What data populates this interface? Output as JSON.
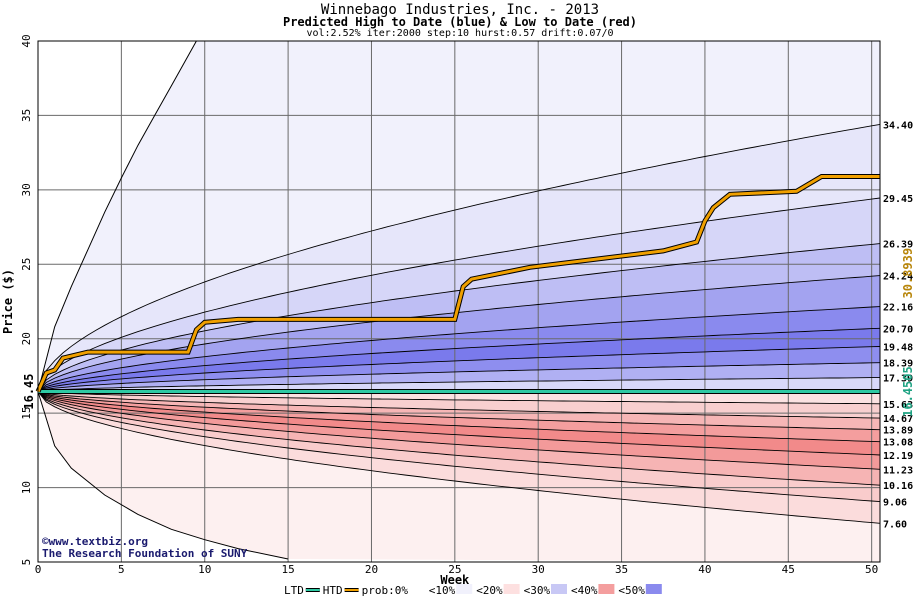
{
  "header": {
    "title": "Winnebago Industries, Inc. - 2013",
    "subtitle": "Predicted High to Date (blue) &  Low to Date (red)",
    "params": "vol:2.52% iter:2000 step:10 hurst:0.57 drift:0.07/0"
  },
  "credits": {
    "site": "©www.textbiz.org",
    "org": "The Research Foundation of SUNY"
  },
  "colors": {
    "background": "#ffffff",
    "grid": "#6a6a6a",
    "current_line": "#2ec9a3",
    "step_line": "#f0a000",
    "band_outline": "#000000",
    "start_label": "#000000",
    "current_label": "#1fa383",
    "step_label": "#b8860b"
  },
  "chart_data": {
    "type": "area",
    "title": "Winnebago Industries, Inc. - 2013",
    "xlabel": "Week",
    "ylabel": "Price ($)",
    "xlim": [
      0,
      50.5
    ],
    "ylim": [
      5,
      40
    ],
    "x_ticks": [
      0,
      5,
      10,
      15,
      20,
      25,
      30,
      35,
      40,
      45,
      50
    ],
    "y_ticks": [
      5,
      10,
      15,
      20,
      25,
      30,
      35,
      40
    ],
    "grid": true,
    "start_price": 16.45,
    "start_label": "16.45",
    "current_value": 16.4505,
    "current_label": "16.4505",
    "predicted_high_label": "30.8939",
    "high_outer_curve": {
      "x": [
        0,
        1,
        2,
        3,
        4,
        5,
        6,
        7,
        8,
        9,
        9.5
      ],
      "y": [
        16.45,
        20.8,
        23.5,
        26.0,
        28.5,
        30.8,
        33.0,
        35.0,
        37.0,
        39.0,
        40.0
      ]
    },
    "low_outer_curve": {
      "x": [
        0,
        1,
        2,
        4,
        6,
        8,
        10,
        12,
        15
      ],
      "y": [
        16.45,
        12.8,
        11.3,
        9.5,
        8.2,
        7.2,
        6.5,
        5.9,
        5.2
      ]
    },
    "quantile_curves": [
      {
        "end": 34.4,
        "label": "34.40"
      },
      {
        "end": 29.45,
        "label": "29.45"
      },
      {
        "end": 26.39,
        "label": "26.39"
      },
      {
        "end": 24.24,
        "label": "24.24"
      },
      {
        "end": 22.16,
        "label": "22.16"
      },
      {
        "end": 20.7,
        "label": "20.70"
      },
      {
        "end": 19.48,
        "label": "19.48"
      },
      {
        "end": 18.39,
        "label": "18.39"
      },
      {
        "end": 17.39,
        "label": "17.39"
      },
      {
        "end": 15.63,
        "label": "15.63"
      },
      {
        "end": 14.67,
        "label": "14.67"
      },
      {
        "end": 13.89,
        "label": "13.89"
      },
      {
        "end": 13.08,
        "label": "13.08"
      },
      {
        "end": 12.19,
        "label": "12.19"
      },
      {
        "end": 11.23,
        "label": "11.23"
      },
      {
        "end": 10.16,
        "label": "10.16"
      },
      {
        "end": 9.06,
        "label": "9.06"
      },
      {
        "end": 7.6,
        "label": "7.60"
      }
    ],
    "band_fills": [
      {
        "lo": 29.45,
        "hi": 34.4,
        "color": "#e6e6fa"
      },
      {
        "lo": 26.39,
        "hi": 29.45,
        "color": "#d6d6f8"
      },
      {
        "lo": 24.24,
        "hi": 26.39,
        "color": "#bebef4"
      },
      {
        "lo": 22.16,
        "hi": 24.24,
        "color": "#a3a3f0"
      },
      {
        "lo": 20.7,
        "hi": 22.16,
        "color": "#8a8aee"
      },
      {
        "lo": 19.48,
        "hi": 20.7,
        "color": "#7a7aec"
      },
      {
        "lo": 18.39,
        "hi": 19.48,
        "color": "#8e8eef"
      },
      {
        "lo": 17.39,
        "hi": 18.39,
        "color": "#b0b0f3"
      },
      {
        "lo": 16.45,
        "hi": 17.39,
        "color": "#d8d8f9"
      },
      {
        "lo": 15.63,
        "hi": 16.45,
        "color": "#fbe2e2"
      },
      {
        "lo": 14.67,
        "hi": 15.63,
        "color": "#f8cfcf"
      },
      {
        "lo": 13.89,
        "hi": 14.67,
        "color": "#f6b6b6"
      },
      {
        "lo": 13.08,
        "hi": 13.89,
        "color": "#f49e9e"
      },
      {
        "lo": 12.19,
        "hi": 13.08,
        "color": "#f28a8a"
      },
      {
        "lo": 11.23,
        "hi": 12.19,
        "color": "#f39a9a"
      },
      {
        "lo": 10.16,
        "hi": 11.23,
        "color": "#f6b4b4"
      },
      {
        "lo": 9.06,
        "hi": 10.16,
        "color": "#f9cccc"
      },
      {
        "lo": 7.6,
        "hi": 9.06,
        "color": "#fbdcdc"
      }
    ],
    "outer_fills": {
      "high": "#f1f1fc",
      "low": "#fdf0f0"
    },
    "predicted_high_path": {
      "x": [
        0,
        0.5,
        1.0,
        1.5,
        3.0,
        9.0,
        9.5,
        10.0,
        12.0,
        25.0,
        25.5,
        26.0,
        29.5,
        37.5,
        39.5,
        40.0,
        40.5,
        41.5,
        45.5,
        47.0,
        50.5
      ],
      "y": [
        16.45,
        17.7,
        17.9,
        18.7,
        19.1,
        19.1,
        20.6,
        21.1,
        21.3,
        21.3,
        23.5,
        24.0,
        24.8,
        25.9,
        26.5,
        27.9,
        28.8,
        29.7,
        29.9,
        30.9,
        30.9
      ]
    },
    "legend": [
      {
        "label": "LTD",
        "color": "#2ec9a3",
        "kind": "line"
      },
      {
        "label": "HTD",
        "color": "#f0a000",
        "kind": "line"
      },
      {
        "label": "prob:0%",
        "color": "#ffffff",
        "kind": "swatch"
      },
      {
        "label": "<10%",
        "color": "#f1f1fc",
        "kind": "swatch"
      },
      {
        "label": "<20%",
        "color": "#fde0e0",
        "kind": "swatch"
      },
      {
        "label": "<30%",
        "color": "#c8c8f5",
        "kind": "swatch"
      },
      {
        "label": "<40%",
        "color": "#f49e9e",
        "kind": "swatch"
      },
      {
        "label": "<50%",
        "color": "#8a8aee",
        "kind": "swatch"
      }
    ]
  }
}
